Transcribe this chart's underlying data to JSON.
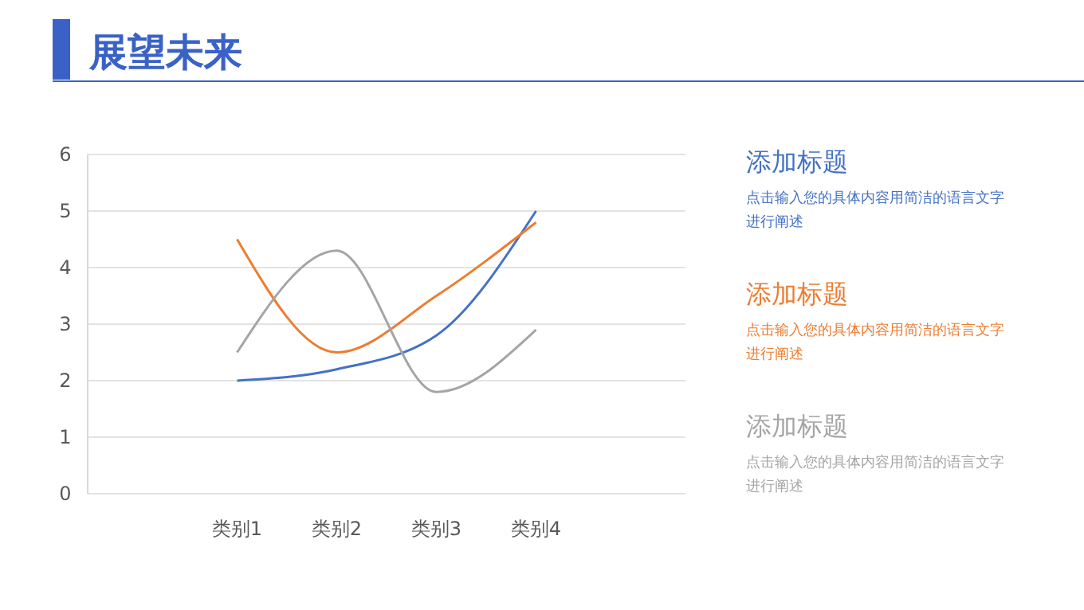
{
  "chart_data": {
    "type": "line",
    "title": "展望未来",
    "categories": [
      "类别1",
      "类别2",
      "类别3",
      "类别4"
    ],
    "series": [
      {
        "name": "添加标题",
        "color": "#4472c4",
        "values": [
          2.0,
          2.2,
          2.8,
          5.0
        ]
      },
      {
        "name": "添加标题",
        "color": "#ed7d31",
        "values": [
          4.5,
          2.5,
          3.5,
          4.8
        ]
      },
      {
        "name": "添加标题",
        "color": "#a5a5a5",
        "values": [
          2.5,
          4.3,
          1.8,
          2.9
        ]
      }
    ],
    "annotations": [
      "点击输入您的具体内容用简洁的语言文字进行阐述",
      "点击输入您的具体内容用简洁的语言文字进行阐述",
      "点击输入您的具体内容用简洁的语言文字进行阐述"
    ],
    "ylim": [
      0,
      6
    ],
    "yticks": [
      0,
      1,
      2,
      3,
      4,
      5,
      6
    ],
    "grid": "y",
    "legend": "right",
    "marker": "none",
    "line_style": "solid"
  }
}
